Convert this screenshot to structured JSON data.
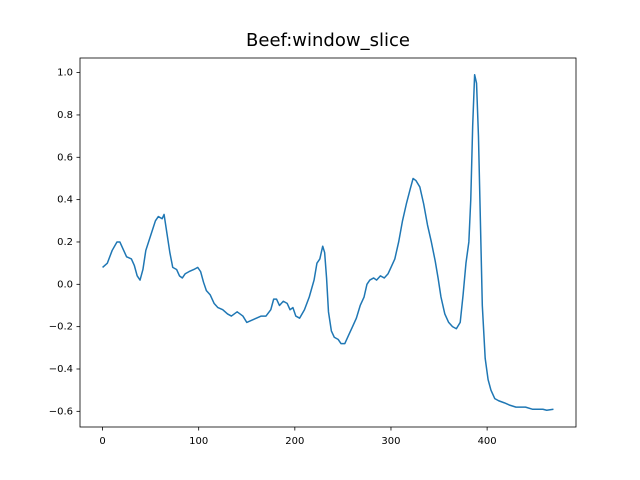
{
  "chart_data": {
    "type": "line",
    "title": "Beef:window_slice",
    "x": [
      0,
      5,
      10,
      15,
      18,
      22,
      25,
      30,
      33,
      36,
      39,
      42,
      45,
      50,
      55,
      58,
      62,
      64,
      67,
      70,
      73,
      77,
      80,
      83,
      86,
      90,
      95,
      99,
      102,
      105,
      108,
      112,
      116,
      120,
      125,
      130,
      134,
      140,
      146,
      150,
      155,
      160,
      165,
      170,
      175,
      178,
      181,
      184,
      188,
      192,
      195,
      198,
      201,
      205,
      210,
      215,
      220,
      223,
      226,
      229,
      231,
      233,
      235,
      238,
      241,
      245,
      248,
      252,
      256,
      260,
      264,
      268,
      272,
      275,
      278,
      282,
      285,
      289,
      293,
      297,
      300,
      304,
      308,
      312,
      316,
      320,
      323,
      326,
      330,
      334,
      338,
      342,
      346,
      349,
      352,
      356,
      360,
      364,
      368,
      372,
      375,
      378,
      381,
      383,
      385,
      387,
      389,
      391,
      393,
      395,
      398,
      401,
      404,
      408,
      412,
      418,
      423,
      430,
      440,
      447,
      452,
      458,
      462,
      469
    ],
    "series": [
      {
        "color": "#1f77b4",
        "values": [
          0.08,
          0.1,
          0.16,
          0.2,
          0.2,
          0.16,
          0.13,
          0.12,
          0.09,
          0.04,
          0.02,
          0.07,
          0.16,
          0.23,
          0.3,
          0.32,
          0.31,
          0.33,
          0.24,
          0.15,
          0.08,
          0.07,
          0.04,
          0.03,
          0.05,
          0.06,
          0.07,
          0.08,
          0.06,
          0.01,
          -0.03,
          -0.05,
          -0.09,
          -0.11,
          -0.12,
          -0.14,
          -0.15,
          -0.13,
          -0.15,
          -0.18,
          -0.17,
          -0.16,
          -0.15,
          -0.15,
          -0.12,
          -0.07,
          -0.07,
          -0.1,
          -0.08,
          -0.09,
          -0.12,
          -0.11,
          -0.15,
          -0.16,
          -0.12,
          -0.06,
          0.02,
          0.1,
          0.12,
          0.18,
          0.15,
          0.03,
          -0.13,
          -0.22,
          -0.25,
          -0.26,
          -0.28,
          -0.28,
          -0.24,
          -0.2,
          -0.16,
          -0.1,
          -0.06,
          0.0,
          0.02,
          0.03,
          0.02,
          0.04,
          0.03,
          0.05,
          0.08,
          0.12,
          0.2,
          0.3,
          0.38,
          0.45,
          0.5,
          0.49,
          0.46,
          0.38,
          0.28,
          0.2,
          0.11,
          0.03,
          -0.06,
          -0.14,
          -0.18,
          -0.2,
          -0.21,
          -0.18,
          -0.05,
          0.1,
          0.2,
          0.4,
          0.75,
          0.99,
          0.95,
          0.7,
          0.3,
          -0.1,
          -0.35,
          -0.45,
          -0.5,
          -0.54,
          -0.55,
          -0.56,
          -0.57,
          -0.58,
          -0.58,
          -0.59,
          -0.59,
          -0.59,
          -0.595,
          -0.59
        ]
      }
    ],
    "xlim": [
      -23.45,
      492.45
    ],
    "ylim": [
      -0.674,
      1.069
    ],
    "xticks": [
      0,
      100,
      200,
      300,
      400
    ],
    "yticks": [
      {
        "value": -0.6,
        "label": "−0.6"
      },
      {
        "value": -0.4,
        "label": "−0.4"
      },
      {
        "value": -0.2,
        "label": "−0.2"
      },
      {
        "value": 0,
        "label": "0.0"
      },
      {
        "value": 0.2,
        "label": "0.2"
      },
      {
        "value": 0.4,
        "label": "0.4"
      },
      {
        "value": 0.6,
        "label": "0.6"
      },
      {
        "value": 0.8,
        "label": "0.8"
      },
      {
        "value": 1.0,
        "label": "1.0"
      }
    ],
    "grid": false
  }
}
